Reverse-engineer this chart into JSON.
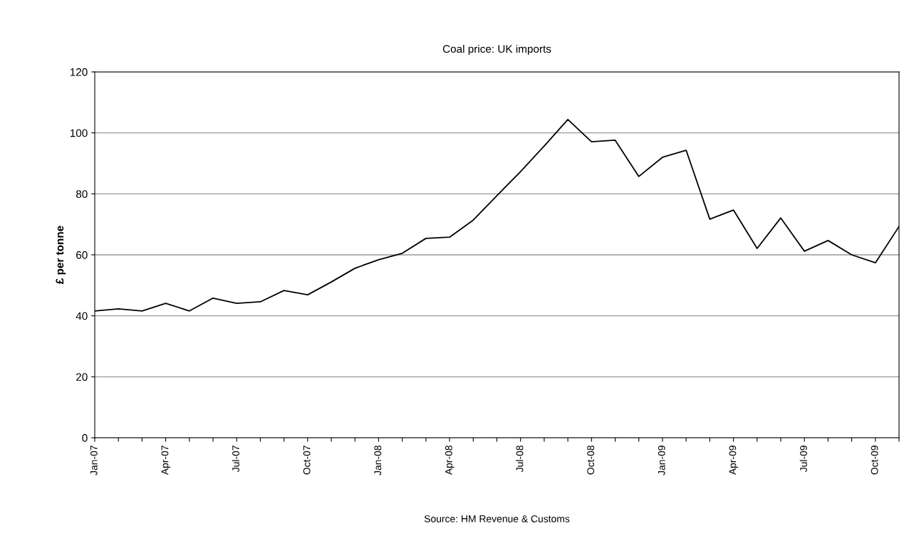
{
  "chart_data": {
    "type": "line",
    "title": "Coal price: UK imports",
    "ylabel": "£ per tonne",
    "categories": [
      "Jan-07",
      null,
      null,
      "Apr-07",
      null,
      null,
      "Jul-07",
      null,
      null,
      "Oct-07",
      null,
      null,
      "Jan-08",
      null,
      null,
      "Apr-08",
      null,
      null,
      "Jul-08",
      null,
      null,
      "Oct-08",
      null,
      null,
      "Jan-09",
      null,
      null,
      "Apr-09",
      null,
      null,
      "Jul-09",
      null,
      null,
      "Oct-09",
      null
    ],
    "series": [
      {
        "color": "#000000",
        "values": [
          41.6,
          42.3,
          41.6,
          44.1,
          41.6,
          45.8,
          44.1,
          44.6,
          48.3,
          46.9,
          51.1,
          55.6,
          58.4,
          60.5,
          65.4,
          65.8,
          71.4,
          79.4,
          87.3,
          95.7,
          104.4,
          97.1,
          97.6,
          85.7,
          92.0,
          94.3,
          71.7,
          74.7,
          62.1,
          72.1,
          61.2,
          64.7,
          60.0,
          57.4,
          69.3
        ]
      }
    ],
    "ylim": [
      0,
      120
    ],
    "yticks": [
      0,
      20,
      40,
      60,
      80,
      100,
      120
    ],
    "grid": "y",
    "marker": "none",
    "line_style": "solid",
    "legend": false,
    "annotations": [
      "Source: HM Revenue & Customs"
    ]
  }
}
